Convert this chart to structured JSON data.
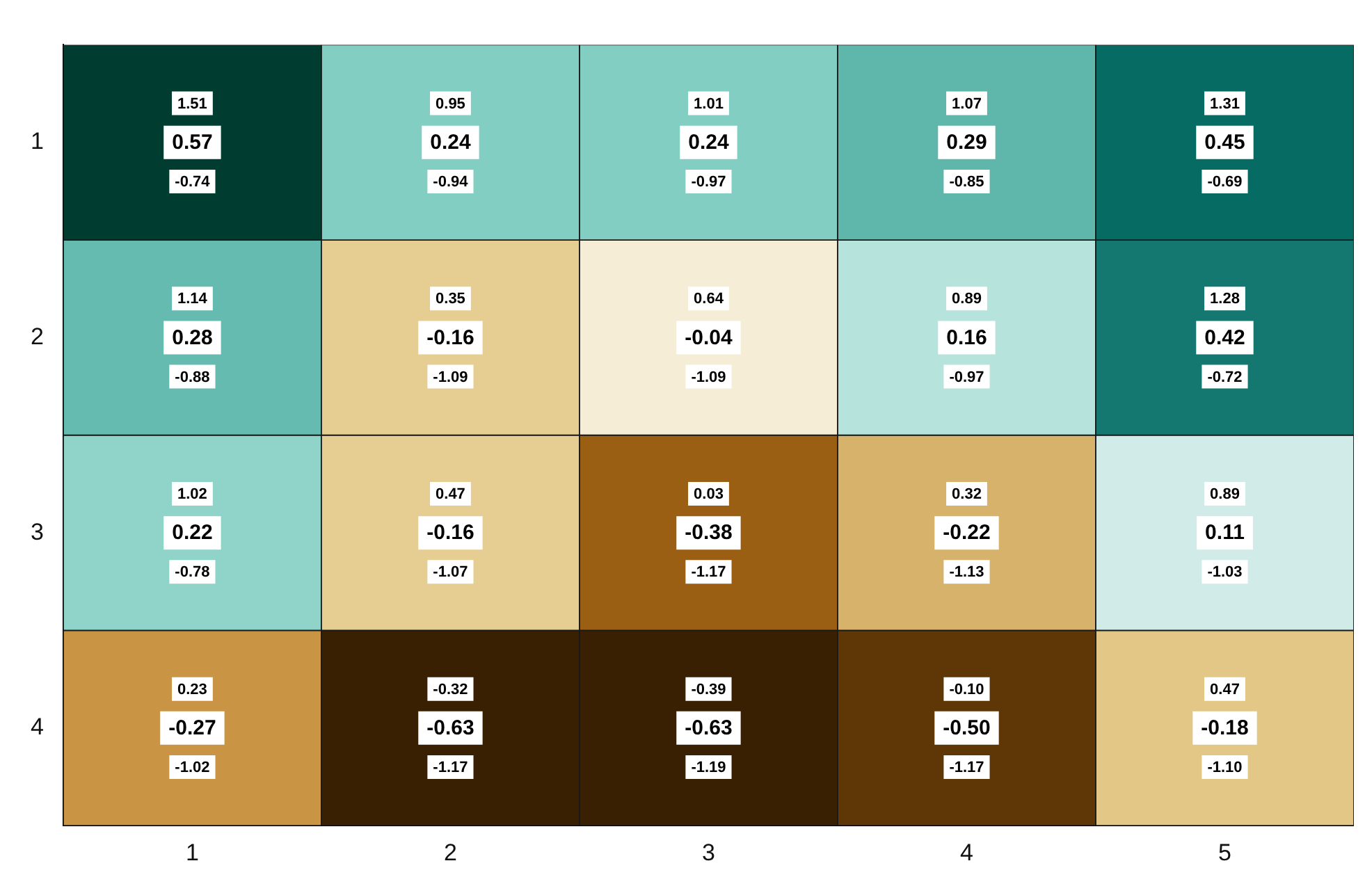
{
  "chart_data": {
    "type": "heatmap",
    "categories": [
      "1",
      "2",
      "3",
      "4",
      "5"
    ],
    "y_categories": [
      "1",
      "2",
      "3",
      "4"
    ],
    "cells": [
      [
        0.57,
        0.24,
        0.24,
        0.29,
        0.45
      ],
      [
        0.28,
        -0.16,
        -0.04,
        0.16,
        0.42
      ],
      [
        0.22,
        -0.16,
        -0.38,
        -0.22,
        0.11
      ],
      [
        -0.27,
        -0.63,
        -0.63,
        -0.5,
        -0.18
      ]
    ],
    "cell_labels": [
      [
        "0.57",
        "0.24",
        "0.24",
        "0.29",
        "0.45"
      ],
      [
        "0.28",
        "-0.16",
        "-0.04",
        "0.16",
        "0.42"
      ],
      [
        "0.22",
        "-0.16",
        "-0.38",
        "-0.22",
        "0.11"
      ],
      [
        "-0.27",
        "-0.63",
        "-0.63",
        "-0.50",
        "-0.18"
      ]
    ],
    "annotations": [
      "1.51",
      "-0.74",
      "0.95",
      "-0.94",
      "1.01",
      "-0.97",
      "1.07",
      "-0.85",
      "1.31",
      "-0.69",
      "1.14",
      "-0.88",
      "0.35",
      "-1.09",
      "0.64",
      "-1.09",
      "0.89",
      "-0.97",
      "1.28",
      "-0.72",
      "1.02",
      "-0.78",
      "0.47",
      "-1.07",
      "0.03",
      "-1.17",
      "0.32",
      "-1.13",
      "0.89",
      "-1.03",
      "0.23",
      "-1.02",
      "-0.32",
      "-1.17",
      "-0.39",
      "-1.19",
      "-0.10",
      "-1.17",
      "0.47",
      "-1.10"
    ],
    "grid": false
  }
}
